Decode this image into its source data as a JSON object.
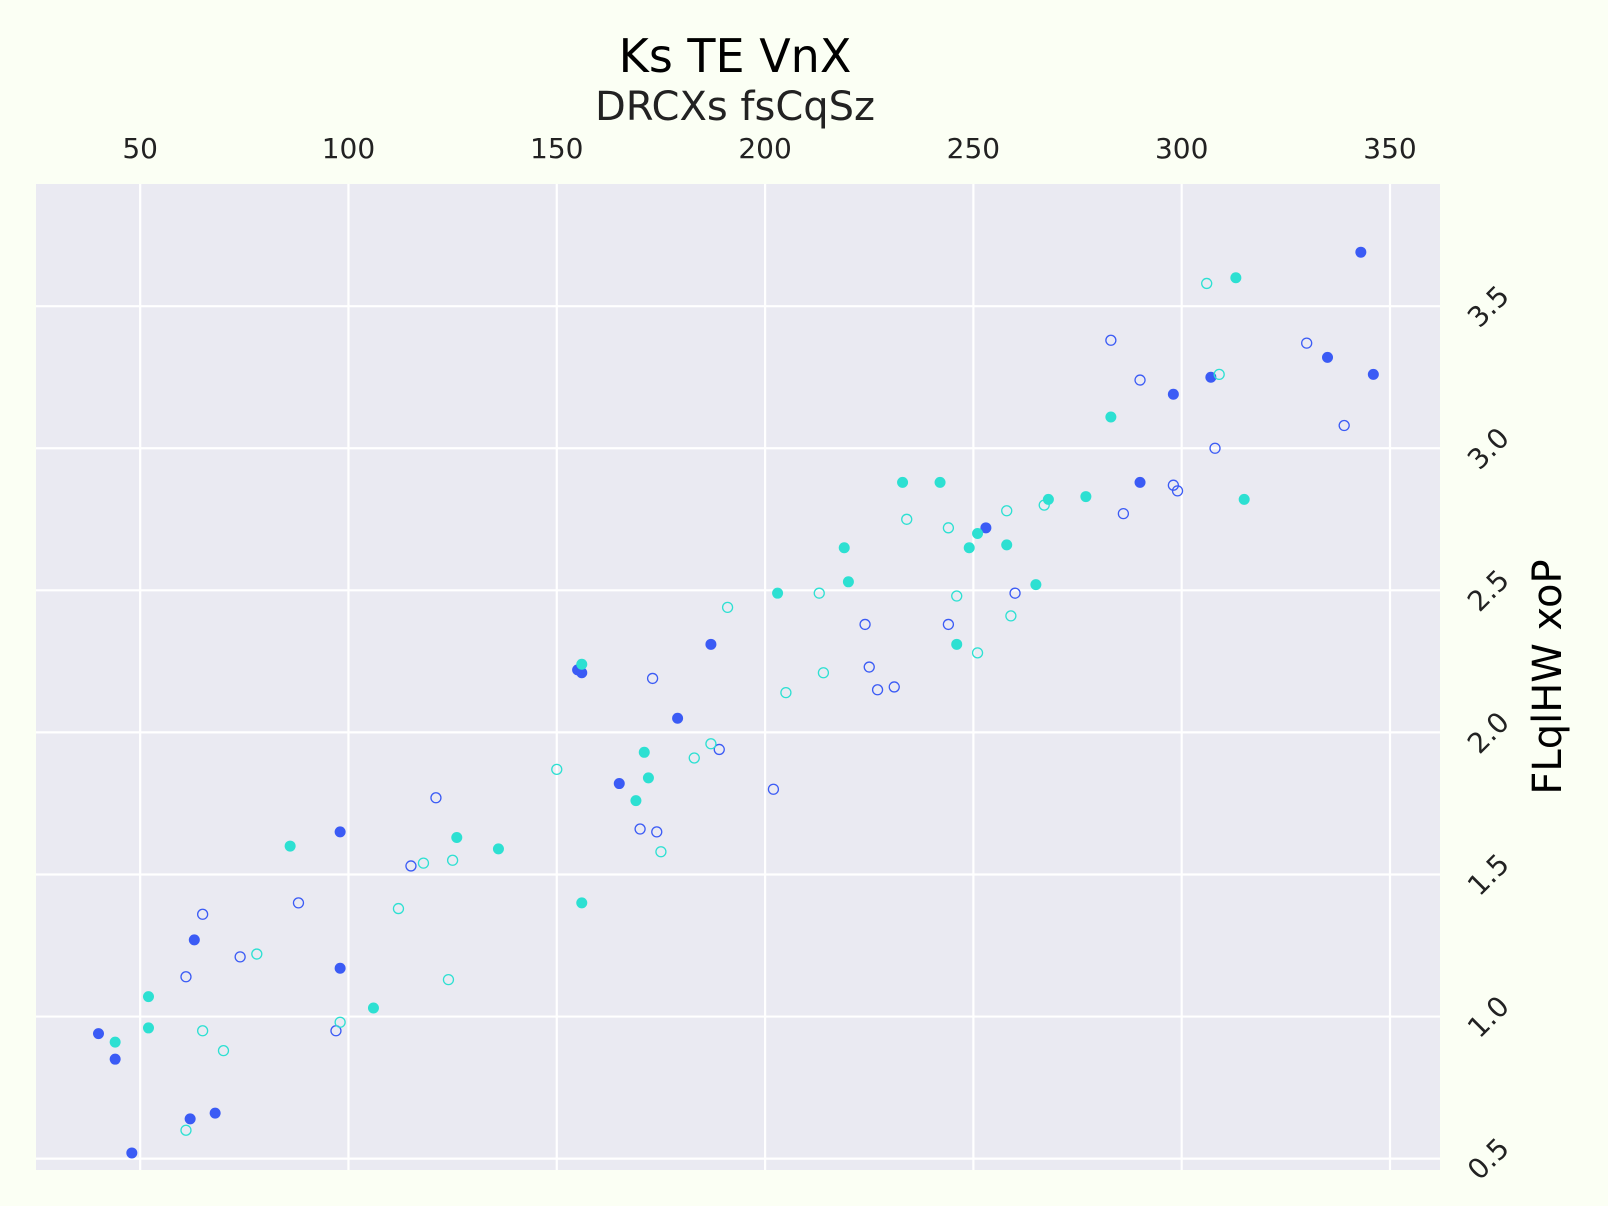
{
  "chart_data": {
    "type": "scatter",
    "title": "Ks TE VnX",
    "subtitle": "DRCXs fsCqSz",
    "xlabel": "",
    "ylabel": "FLqlHW xoP",
    "xlim": [
      25,
      362
    ],
    "ylim": [
      0.46,
      3.93
    ],
    "x_ticks": [
      50,
      100,
      150,
      200,
      250,
      300,
      350
    ],
    "y_ticks": [
      0.5,
      1.0,
      1.5,
      2.0,
      2.5,
      3.0,
      3.5
    ],
    "x_tick_labels": [
      "50",
      "100",
      "150",
      "200",
      "250",
      "300",
      "350"
    ],
    "y_tick_labels": [
      "0.5",
      "1.0",
      "1.5",
      "2.0",
      "2.5",
      "3.0",
      "3.5"
    ],
    "x_axis_position": "top",
    "y_axis_position": "right",
    "grid": true,
    "colors": {
      "background": "#fbfff4",
      "plot_background": "#eaeaf2",
      "grid": "#ffffff",
      "blue": "#3b5bf5",
      "cyan": "#2de0d2"
    },
    "series": [
      {
        "color": "#3b5bf5",
        "filled": true,
        "points": [
          [
            40,
            0.94
          ],
          [
            44,
            0.85
          ],
          [
            48,
            0.52
          ],
          [
            62,
            0.64
          ],
          [
            63,
            1.27
          ],
          [
            68,
            0.66
          ],
          [
            98,
            1.17
          ],
          [
            98,
            1.65
          ],
          [
            155,
            2.22
          ],
          [
            156,
            2.21
          ],
          [
            165,
            1.82
          ],
          [
            179,
            2.05
          ],
          [
            187,
            2.31
          ],
          [
            253,
            2.72
          ],
          [
            290,
            2.88
          ],
          [
            298,
            3.19
          ],
          [
            307,
            3.25
          ],
          [
            335,
            3.32
          ],
          [
            343,
            3.69
          ],
          [
            346,
            3.26
          ]
        ]
      },
      {
        "color": "#3b5bf5",
        "filled": false,
        "points": [
          [
            61,
            1.14
          ],
          [
            65,
            1.36
          ],
          [
            74,
            1.21
          ],
          [
            88,
            1.4
          ],
          [
            97,
            0.95
          ],
          [
            115,
            1.53
          ],
          [
            121,
            1.77
          ],
          [
            170,
            1.66
          ],
          [
            173,
            2.19
          ],
          [
            174,
            1.65
          ],
          [
            189,
            1.94
          ],
          [
            202,
            1.8
          ],
          [
            224,
            2.38
          ],
          [
            225,
            2.23
          ],
          [
            227,
            2.15
          ],
          [
            231,
            2.16
          ],
          [
            244,
            2.38
          ],
          [
            260,
            2.49
          ],
          [
            283,
            3.38
          ],
          [
            286,
            2.77
          ],
          [
            290,
            3.24
          ],
          [
            298,
            2.87
          ],
          [
            299,
            2.85
          ],
          [
            308,
            3.0
          ],
          [
            330,
            3.37
          ],
          [
            339,
            3.08
          ]
        ]
      },
      {
        "color": "#2de0d2",
        "filled": true,
        "points": [
          [
            44,
            0.91
          ],
          [
            52,
            1.07
          ],
          [
            52,
            0.96
          ],
          [
            86,
            1.6
          ],
          [
            106,
            1.03
          ],
          [
            126,
            1.63
          ],
          [
            136,
            1.59
          ],
          [
            156,
            1.4
          ],
          [
            156,
            2.24
          ],
          [
            169,
            1.76
          ],
          [
            171,
            1.93
          ],
          [
            172,
            1.84
          ],
          [
            203,
            2.49
          ],
          [
            219,
            2.65
          ],
          [
            220,
            2.53
          ],
          [
            233,
            2.88
          ],
          [
            242,
            2.88
          ],
          [
            246,
            2.31
          ],
          [
            249,
            2.65
          ],
          [
            251,
            2.7
          ],
          [
            258,
            2.66
          ],
          [
            265,
            2.52
          ],
          [
            268,
            2.82
          ],
          [
            277,
            2.83
          ],
          [
            283,
            3.11
          ],
          [
            313,
            3.6
          ],
          [
            315,
            2.82
          ]
        ]
      },
      {
        "color": "#2de0d2",
        "filled": false,
        "points": [
          [
            61,
            0.6
          ],
          [
            65,
            0.95
          ],
          [
            70,
            0.88
          ],
          [
            78,
            1.22
          ],
          [
            98,
            0.98
          ],
          [
            112,
            1.38
          ],
          [
            118,
            1.54
          ],
          [
            124,
            1.13
          ],
          [
            125,
            1.55
          ],
          [
            150,
            1.87
          ],
          [
            175,
            1.58
          ],
          [
            183,
            1.91
          ],
          [
            187,
            1.96
          ],
          [
            191,
            2.44
          ],
          [
            205,
            2.14
          ],
          [
            213,
            2.49
          ],
          [
            214,
            2.21
          ],
          [
            234,
            2.75
          ],
          [
            244,
            2.72
          ],
          [
            246,
            2.48
          ],
          [
            251,
            2.28
          ],
          [
            258,
            2.78
          ],
          [
            259,
            2.41
          ],
          [
            267,
            2.8
          ],
          [
            306,
            3.58
          ],
          [
            309,
            3.26
          ]
        ]
      }
    ]
  }
}
